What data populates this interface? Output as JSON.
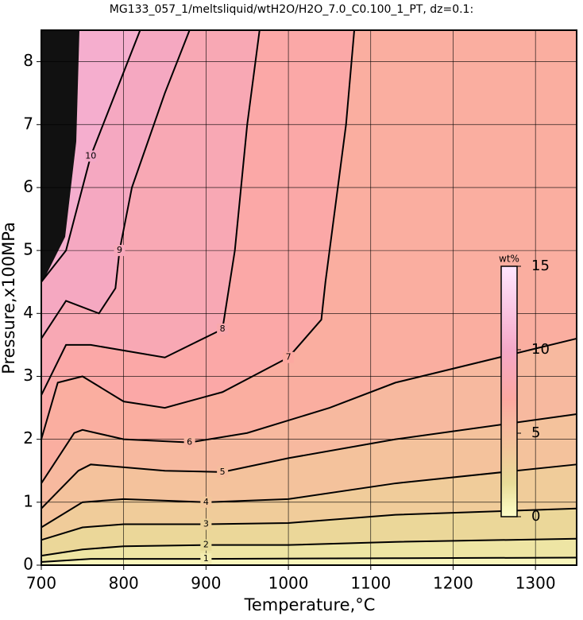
{
  "chart_data": {
    "type": "contour",
    "title": "MG133_057_1/meltsliquid/wtH2O/H2O_7.0_C0.100_1_PT, dz=0.1:",
    "x_label": "Temperature,°C",
    "y_label": "Pressure,x100MPa",
    "xlim": [
      700,
      1350
    ],
    "ylim": [
      0,
      8.5
    ],
    "xticks": [
      700,
      800,
      900,
      1000,
      1100,
      1200,
      1300
    ],
    "yticks": [
      0,
      1,
      2,
      3,
      4,
      5,
      6,
      7,
      8
    ],
    "grid": true,
    "contours": [
      {
        "level": 1,
        "x": [
          700,
          760,
          900,
          1130,
          1350
        ],
        "y": [
          0.05,
          0.1,
          0.1,
          0.11,
          0.12
        ]
      },
      {
        "level": 2,
        "x": [
          700,
          750,
          800,
          900,
          1000,
          1130,
          1350
        ],
        "y": [
          0.15,
          0.25,
          0.3,
          0.32,
          0.32,
          0.37,
          0.42
        ]
      },
      {
        "level": 3,
        "x": [
          700,
          750,
          800,
          900,
          1000,
          1130,
          1350
        ],
        "y": [
          0.4,
          0.6,
          0.65,
          0.65,
          0.67,
          0.8,
          0.9
        ]
      },
      {
        "level": 4,
        "x": [
          700,
          750,
          800,
          900,
          1000,
          1130,
          1350
        ],
        "y": [
          0.6,
          1.0,
          1.05,
          1.0,
          1.05,
          1.3,
          1.6
        ]
      },
      {
        "level": 5,
        "x": [
          700,
          745,
          760,
          850,
          920,
          1000,
          1130,
          1350
        ],
        "y": [
          0.9,
          1.5,
          1.6,
          1.5,
          1.48,
          1.7,
          2.0,
          2.4
        ]
      },
      {
        "level": 6,
        "x": [
          700,
          740,
          750,
          800,
          880,
          950,
          1050,
          1130,
          1350
        ],
        "y": [
          1.3,
          2.1,
          2.15,
          2.0,
          1.95,
          2.1,
          2.5,
          2.9,
          3.6
        ]
      },
      {
        "level": 7,
        "x": [
          700,
          720,
          750,
          800,
          850,
          920,
          1000,
          1040,
          1045,
          1055,
          1070,
          1080
        ],
        "y": [
          2.0,
          2.9,
          3.0,
          2.6,
          2.5,
          2.75,
          3.3,
          3.9,
          4.5,
          5.5,
          7.0,
          8.5
        ]
      },
      {
        "level": 8,
        "x": [
          700,
          730,
          760,
          850,
          920,
          935,
          950,
          965
        ],
        "y": [
          2.7,
          3.5,
          3.5,
          3.3,
          3.75,
          5.0,
          7.0,
          8.5
        ]
      },
      {
        "level": 9,
        "x": [
          700,
          730,
          770,
          790,
          795,
          810,
          850,
          880
        ],
        "y": [
          3.6,
          4.2,
          4.0,
          4.4,
          5.0,
          6.0,
          7.5,
          8.5
        ]
      },
      {
        "level": 10,
        "x": [
          700,
          730,
          740,
          760,
          790,
          820
        ],
        "y": [
          4.5,
          5.0,
          5.5,
          6.5,
          7.5,
          8.5
        ]
      }
    ],
    "colorbar": {
      "label": "wt%",
      "clim": [
        0,
        15
      ],
      "ticks": [
        0,
        5,
        10,
        15
      ]
    },
    "colormap": [
      {
        "value": 0,
        "color": "#fefec8"
      },
      {
        "value": 2,
        "color": "#e8dc98"
      },
      {
        "value": 4,
        "color": "#f2c69a"
      },
      {
        "value": 6,
        "color": "#f8b4a0"
      },
      {
        "value": 7,
        "color": "#fca8a0"
      },
      {
        "value": 10,
        "color": "#f4a8c8"
      },
      {
        "value": 15,
        "color": "#ffe6ff"
      }
    ]
  }
}
